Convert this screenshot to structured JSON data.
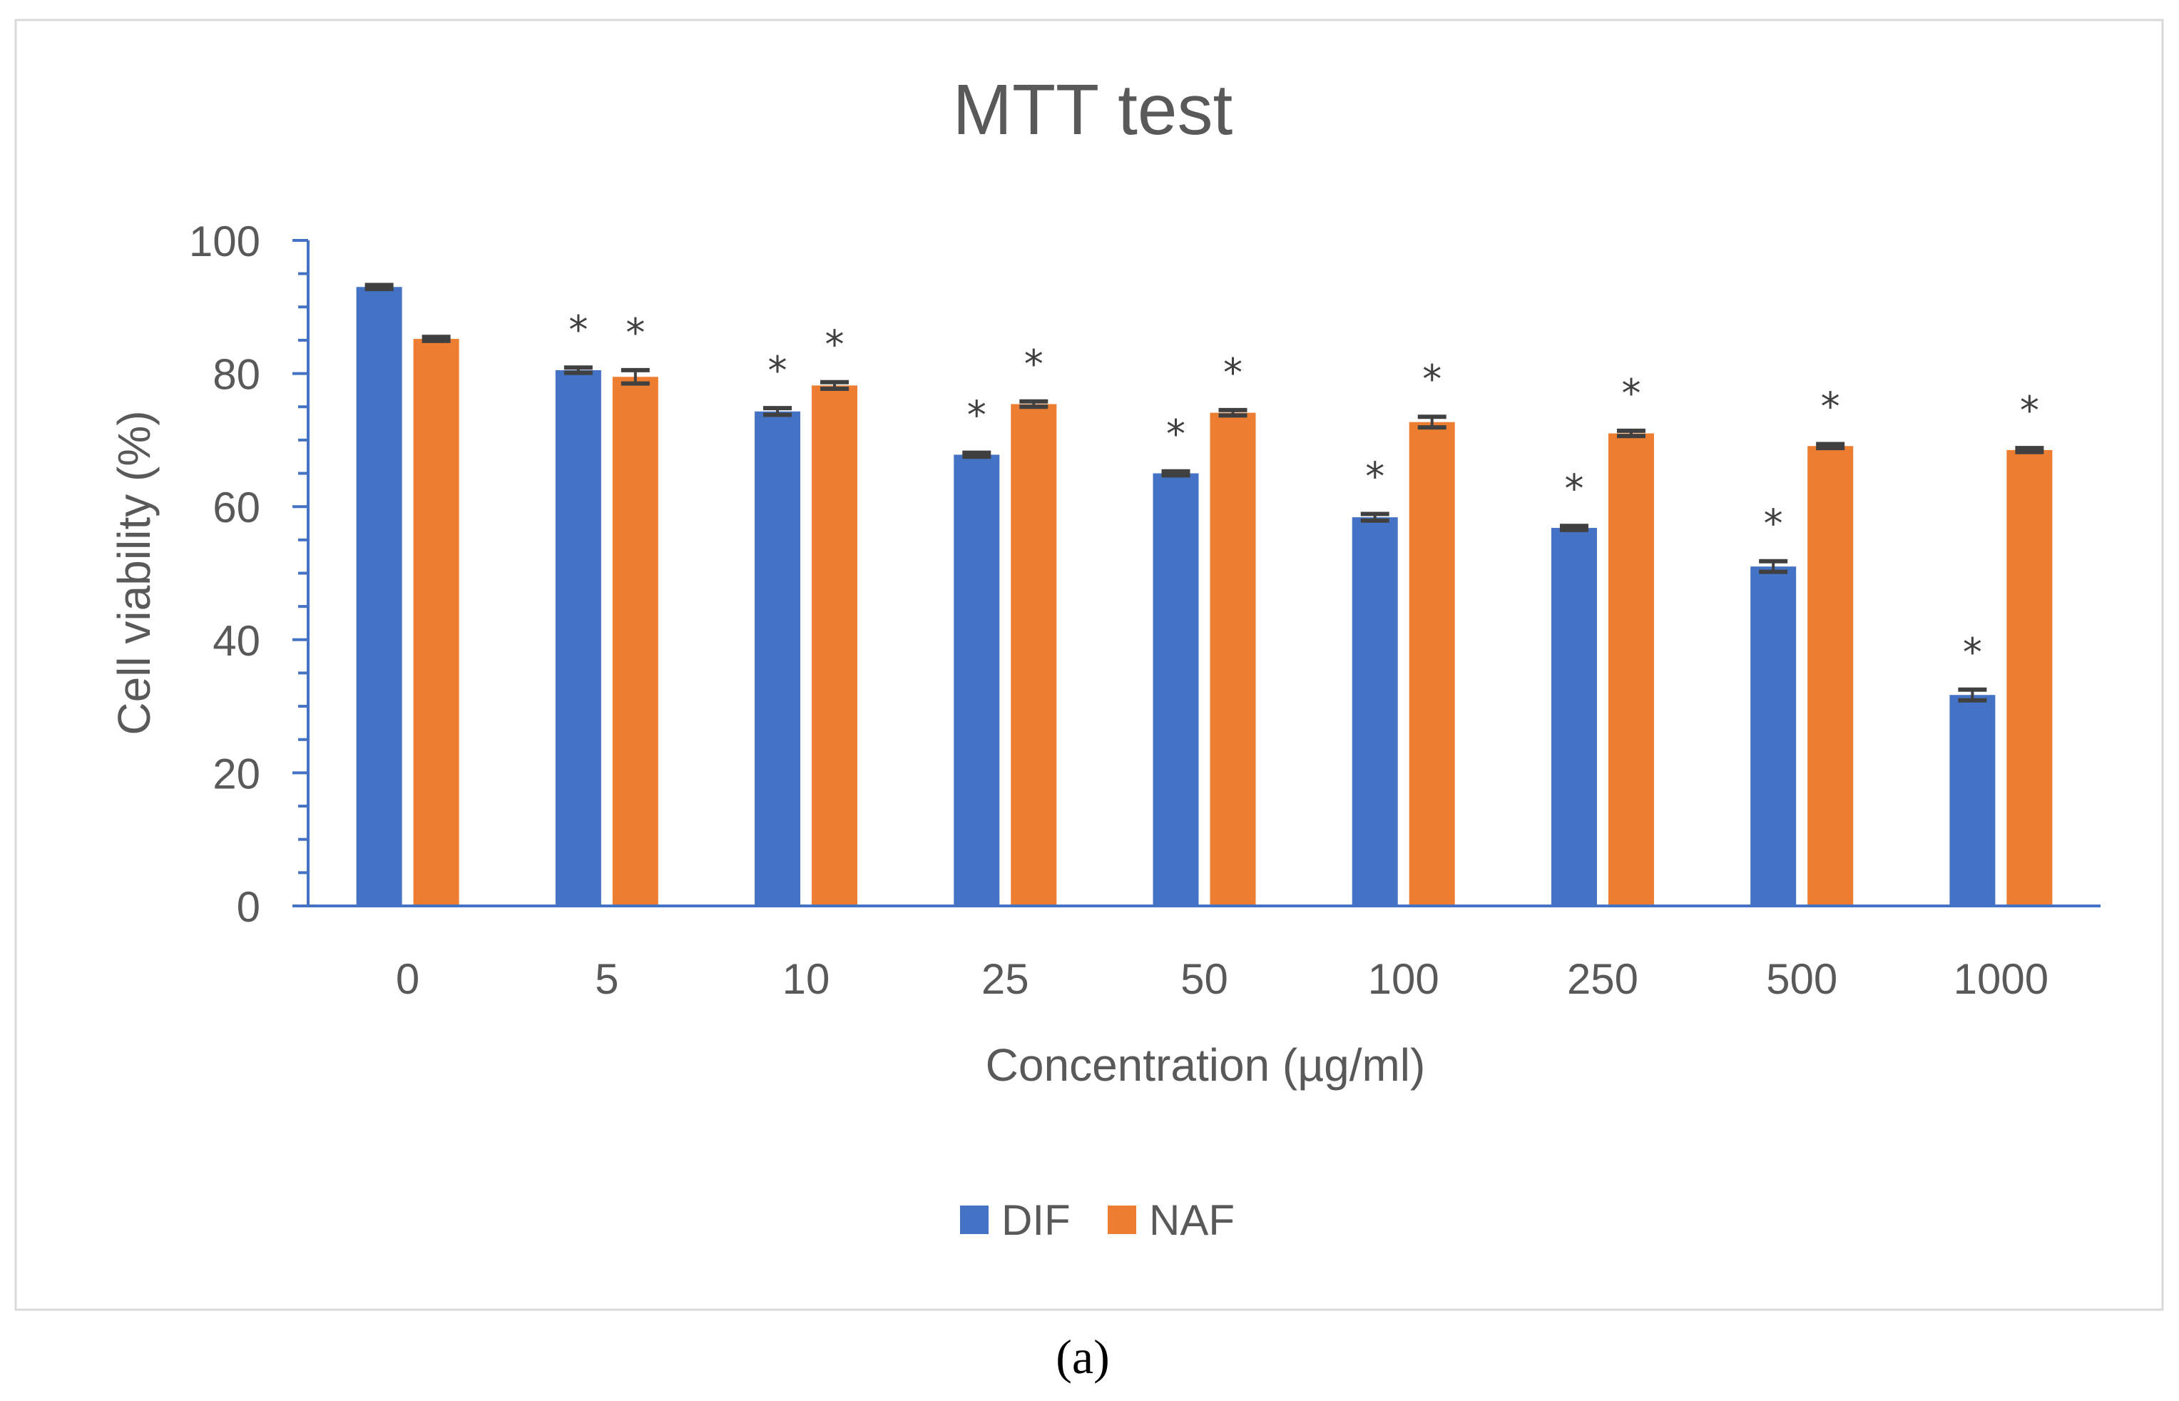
{
  "chart_data": {
    "type": "bar",
    "title": "MTT test",
    "xlabel": "Concentration (µg/ml)",
    "ylabel": "Cell viability (%)",
    "ylim": [
      0,
      100
    ],
    "yticks": [
      0,
      20,
      40,
      60,
      80,
      100
    ],
    "categories": [
      "0",
      "5",
      "10",
      "25",
      "50",
      "100",
      "250",
      "500",
      "1000"
    ],
    "series": [
      {
        "name": "DIF",
        "color": "#4472C4",
        "values": [
          93,
          80.5,
          74.3,
          67.8,
          65,
          58.4,
          56.8,
          51,
          31.7
        ],
        "errors": [
          0.3,
          0.4,
          0.5,
          0.3,
          0.3,
          0.5,
          0.3,
          0.8,
          0.8
        ],
        "significant": [
          false,
          true,
          true,
          true,
          true,
          true,
          true,
          true,
          true
        ]
      },
      {
        "name": "NAF",
        "color": "#ED7D31",
        "values": [
          85.2,
          79.5,
          78.2,
          75.4,
          74.1,
          72.7,
          71,
          69.1,
          68.5
        ],
        "errors": [
          0.3,
          1,
          0.5,
          0.4,
          0.4,
          0.8,
          0.4,
          0.3,
          0.3
        ],
        "significant": [
          false,
          true,
          true,
          true,
          true,
          true,
          true,
          true,
          true
        ]
      }
    ],
    "significance_marker": "*",
    "legend": [
      "DIF",
      "NAF"
    ],
    "legend_position": "bottom",
    "grid": false
  },
  "caption": "(a)"
}
